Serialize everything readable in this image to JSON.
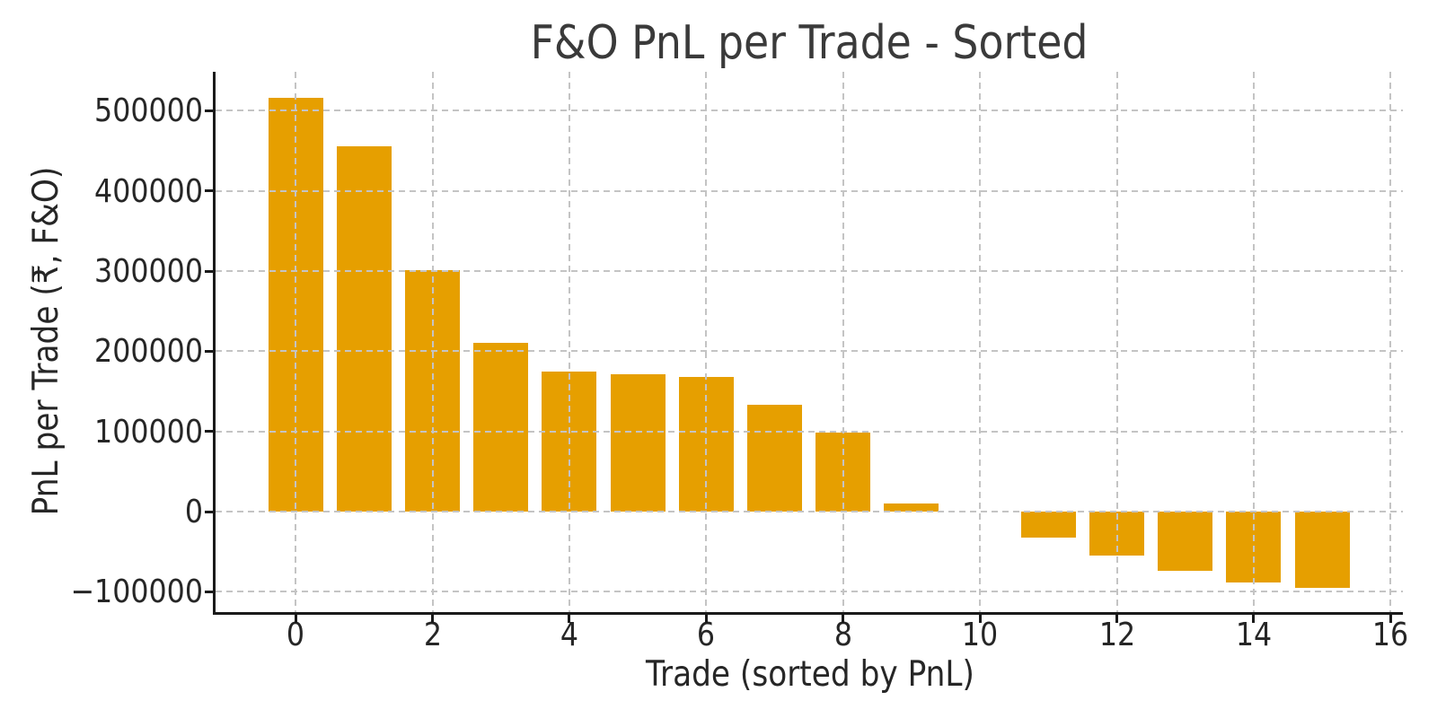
{
  "chart_data": {
    "type": "bar",
    "title": "F&O PnL per Trade - Sorted",
    "xlabel": "Trade (sorted by PnL)",
    "ylabel": "PnL per Trade (₹, F&O)",
    "x": [
      0,
      1,
      2,
      3,
      4,
      5,
      6,
      7,
      8,
      9,
      10,
      11,
      12,
      13,
      14,
      15
    ],
    "values": [
      516000,
      456000,
      301000,
      210000,
      175000,
      171500,
      168000,
      133500,
      99000,
      10500,
      0,
      -32000,
      -55000,
      -73500,
      -88000,
      -95000
    ],
    "bar_width": 0.8,
    "xlim": [
      -1.17,
      16.18
    ],
    "ylim": [
      -125400,
      548700
    ],
    "xticks": [
      0,
      2,
      4,
      6,
      8,
      10,
      12,
      14,
      16
    ],
    "xtick_labels": [
      "0",
      "2",
      "4",
      "6",
      "8",
      "10",
      "12",
      "14",
      "16"
    ],
    "yticks": [
      -100000,
      0,
      100000,
      200000,
      300000,
      400000,
      500000
    ],
    "ytick_labels": [
      "−100000",
      "0",
      "100000",
      "200000",
      "300000",
      "400000",
      "500000"
    ],
    "grid": "dashed, drawn above bars, at all ticks",
    "legend": "none",
    "colors": {
      "bar": "#E69F00",
      "grid": "#c4c4c4",
      "axis": "#1a1a1a",
      "tick_label": "#262626",
      "axis_label": "#262626",
      "title": "#3a3a3a",
      "background": "#ffffff"
    }
  }
}
